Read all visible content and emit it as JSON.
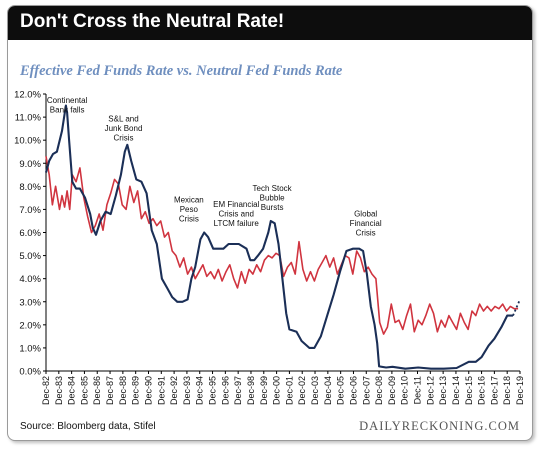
{
  "title": "Don't Cross the Neutral Rate!",
  "subtitle": "Effective Fed Funds Rate vs. Neutral Fed Funds Rate",
  "source": "Source: Bloomberg data, Stifel",
  "brand": "DAILYRECKONING.COM",
  "colors": {
    "effective": "#1b2f57",
    "neutral": "#d0343f",
    "frame": "#9a9a9a",
    "title_bg": "#0d0d0d"
  },
  "chart_data": {
    "type": "line",
    "title": "Effective Fed Funds Rate vs. Neutral Fed Funds Rate",
    "xlabel": "",
    "ylabel": "",
    "ylim": [
      0,
      12
    ],
    "xlim": [
      1982.95,
      2019.95
    ],
    "grid": false,
    "legend": "none",
    "x_tick_labels": [
      "Dec-82",
      "Dec-83",
      "Dec-84",
      "Dec-85",
      "Dec-86",
      "Dec-87",
      "Dec-88",
      "Dec-89",
      "Dec-90",
      "Dec-91",
      "Dec-92",
      "Dec-93",
      "Dec-94",
      "Dec-95",
      "Dec-96",
      "Dec-97",
      "Dec-98",
      "Dec-99",
      "Dec-00",
      "Dec-01",
      "Dec-02",
      "Dec-03",
      "Dec-04",
      "Dec-05",
      "Dec-06",
      "Dec-07",
      "Dec-08",
      "Dec-09",
      "Dec-10",
      "Dec-11",
      "Dec-12",
      "Dec-13",
      "Dec-14",
      "Dec-15",
      "Dec-16",
      "Dec-17",
      "Dec-18",
      "Dec-19"
    ],
    "y_tick_labels": [
      "0.0%",
      "1.0%",
      "2.0%",
      "3.0%",
      "4.0%",
      "5.0%",
      "6.0%",
      "7.0%",
      "8.0%",
      "9.0%",
      "10.0%",
      "11.0%",
      "12.0%"
    ],
    "series": [
      {
        "id": "effective",
        "color": "#1b2f57",
        "x": [
          1982.95,
          1983.2,
          1983.5,
          1983.8,
          1984.2,
          1984.5,
          1984.6,
          1984.75,
          1985.0,
          1985.3,
          1985.6,
          1986.0,
          1986.4,
          1986.6,
          1986.85,
          1987.2,
          1987.6,
          1988.0,
          1988.4,
          1988.8,
          1989.1,
          1989.3,
          1989.6,
          1990.0,
          1990.4,
          1990.8,
          1991.2,
          1991.6,
          1992.0,
          1992.4,
          1992.8,
          1993.2,
          1993.6,
          1994.0,
          1994.3,
          1994.6,
          1995.0,
          1995.3,
          1995.6,
          1996.0,
          1996.4,
          1996.8,
          1997.2,
          1997.6,
          1998.0,
          1998.6,
          1998.9,
          1999.2,
          1999.5,
          1999.9,
          2000.3,
          2000.5,
          2000.8,
          2001.1,
          2001.4,
          2001.7,
          2001.95,
          2002.5,
          2002.9,
          2003.5,
          2003.9,
          2004.4,
          2004.9,
          2005.4,
          2005.9,
          2006.4,
          2006.9,
          2007.4,
          2007.7,
          2008.0,
          2008.3,
          2008.6,
          2008.8,
          2008.95,
          2009.5,
          2010.0,
          2011.0,
          2012.0,
          2013.0,
          2014.0,
          2015.0,
          2015.95,
          2016.5,
          2016.95,
          2017.5,
          2017.95,
          2018.5,
          2018.95,
          2019.4
        ],
        "y": [
          8.6,
          9.1,
          9.4,
          9.5,
          10.4,
          11.5,
          11.2,
          10.0,
          8.2,
          7.9,
          7.9,
          7.5,
          6.8,
          6.2,
          5.9,
          6.5,
          6.9,
          6.8,
          7.6,
          8.5,
          9.5,
          9.8,
          9.1,
          8.3,
          8.2,
          7.7,
          6.1,
          5.5,
          4.0,
          3.6,
          3.2,
          3.0,
          3.0,
          3.1,
          4.0,
          4.5,
          5.7,
          6.0,
          5.8,
          5.3,
          5.3,
          5.3,
          5.5,
          5.5,
          5.5,
          5.3,
          4.8,
          4.8,
          5.0,
          5.3,
          6.0,
          6.5,
          6.4,
          5.5,
          4.0,
          2.5,
          1.8,
          1.7,
          1.3,
          1.0,
          1.0,
          1.5,
          2.4,
          3.3,
          4.3,
          5.2,
          5.3,
          5.3,
          5.2,
          4.2,
          2.8,
          2.0,
          1.2,
          0.2,
          0.15,
          0.18,
          0.1,
          0.15,
          0.1,
          0.1,
          0.13,
          0.4,
          0.4,
          0.6,
          1.1,
          1.4,
          1.9,
          2.4,
          2.4
        ]
      },
      {
        "id": "effective-projection",
        "color": "#1b2f57",
        "dashed": true,
        "x": [
          2019.4,
          2019.95
        ],
        "y": [
          2.4,
          3.1
        ]
      },
      {
        "id": "neutral",
        "color": "#d0343f",
        "x": [
          1982.95,
          1983.2,
          1983.45,
          1983.7,
          1984.0,
          1984.2,
          1984.4,
          1984.6,
          1984.8,
          1985.0,
          1985.3,
          1985.6,
          1985.9,
          1986.2,
          1986.5,
          1986.8,
          1987.1,
          1987.4,
          1987.7,
          1988.0,
          1988.3,
          1988.6,
          1988.9,
          1989.2,
          1989.5,
          1989.8,
          1990.1,
          1990.4,
          1990.7,
          1991.0,
          1991.3,
          1991.6,
          1991.9,
          1992.2,
          1992.5,
          1992.8,
          1993.1,
          1993.4,
          1993.7,
          1994.0,
          1994.3,
          1994.6,
          1994.9,
          1995.2,
          1995.5,
          1995.8,
          1996.1,
          1996.4,
          1996.7,
          1997.0,
          1997.3,
          1997.6,
          1997.9,
          1998.2,
          1998.5,
          1998.8,
          1999.1,
          1999.4,
          1999.7,
          2000.0,
          2000.3,
          2000.6,
          2000.9,
          2001.2,
          2001.5,
          2001.8,
          2002.1,
          2002.4,
          2002.7,
          2003.0,
          2003.3,
          2003.6,
          2003.9,
          2004.2,
          2004.5,
          2004.8,
          2005.1,
          2005.4,
          2005.7,
          2006.0,
          2006.3,
          2006.6,
          2006.9,
          2007.2,
          2007.5,
          2007.8,
          2008.1,
          2008.4,
          2008.7,
          2009.0,
          2009.3,
          2009.6,
          2009.9,
          2010.2,
          2010.5,
          2010.8,
          2011.1,
          2011.4,
          2011.7,
          2012.0,
          2012.3,
          2012.6,
          2012.9,
          2013.2,
          2013.5,
          2013.8,
          2014.1,
          2014.4,
          2014.7,
          2015.0,
          2015.3,
          2015.6,
          2015.9,
          2016.2,
          2016.5,
          2016.8,
          2017.1,
          2017.4,
          2017.7,
          2018.0,
          2018.3,
          2018.6,
          2018.9,
          2019.2,
          2019.5,
          2019.8
        ],
        "y": [
          9.3,
          8.5,
          7.2,
          8.0,
          7.0,
          7.6,
          7.1,
          7.8,
          7.0,
          8.5,
          8.2,
          8.8,
          7.5,
          6.7,
          6.0,
          6.3,
          6.8,
          6.1,
          7.2,
          7.7,
          8.3,
          8.1,
          7.2,
          7.0,
          8.0,
          7.3,
          7.8,
          6.6,
          6.9,
          6.4,
          6.6,
          6.3,
          6.5,
          5.8,
          6.0,
          5.2,
          5.0,
          4.5,
          4.9,
          4.2,
          4.5,
          4.0,
          4.3,
          4.6,
          4.1,
          4.3,
          4.0,
          4.4,
          3.9,
          4.3,
          4.6,
          4.0,
          3.6,
          4.3,
          3.8,
          4.4,
          4.2,
          4.6,
          4.3,
          4.8,
          5.0,
          4.9,
          5.1,
          5.0,
          4.1,
          4.5,
          4.7,
          4.2,
          5.6,
          4.4,
          3.9,
          4.3,
          3.9,
          4.4,
          4.7,
          5.0,
          4.5,
          4.9,
          4.2,
          4.6,
          5.0,
          4.9,
          4.2,
          5.2,
          4.9,
          4.3,
          4.5,
          4.2,
          4.0,
          2.1,
          1.6,
          1.9,
          2.9,
          2.1,
          2.2,
          1.8,
          2.4,
          2.9,
          1.7,
          2.2,
          2.0,
          2.4,
          2.9,
          2.5,
          1.7,
          2.2,
          1.9,
          2.4,
          2.1,
          1.8,
          2.5,
          2.1,
          1.8,
          2.6,
          2.4,
          2.9,
          2.6,
          2.8,
          2.6,
          2.8,
          2.7,
          2.9,
          2.6,
          2.8,
          2.7,
          2.7
        ]
      }
    ],
    "annotations": [
      {
        "lines": [
          "Continental",
          "Bank falls"
        ],
        "x": 1984.6,
        "y": 11.6
      },
      {
        "lines": [
          "S&L and",
          "Junk Bond",
          "Crisis"
        ],
        "x": 1989.0,
        "y": 10.8
      },
      {
        "lines": [
          "Mexican",
          "Peso",
          "Crisis"
        ],
        "x": 1994.1,
        "y": 7.3
      },
      {
        "lines": [
          "EM Financial",
          "Crisis and",
          "LTCM failure"
        ],
        "x": 1997.8,
        "y": 7.1
      },
      {
        "lines": [
          "Tech Stock",
          "Bubble",
          "Bursts"
        ],
        "x": 2000.6,
        "y": 7.8
      },
      {
        "lines": [
          "Global",
          "Financial",
          "Crisis"
        ],
        "x": 2007.9,
        "y": 6.7
      }
    ]
  }
}
